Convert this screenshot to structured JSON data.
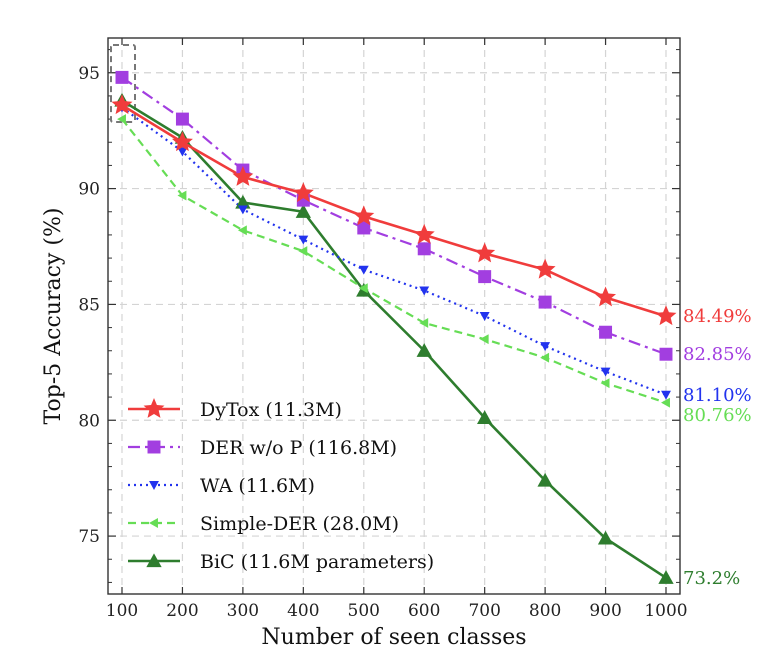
{
  "chart_data": {
    "type": "line",
    "xlabel": "Number of seen classes",
    "ylabel": "Top-5 Accuracy (%)",
    "x": [
      100,
      200,
      300,
      400,
      500,
      600,
      700,
      800,
      900,
      1000
    ],
    "xticks": [
      "100",
      "200",
      "300",
      "400",
      "500",
      "600",
      "700",
      "800",
      "900",
      "1000"
    ],
    "yticks": [
      "75",
      "80",
      "85",
      "90",
      "95"
    ],
    "ylim": [
      72.5,
      96.5
    ],
    "grid": true,
    "legend_position": "bottom-left",
    "series": [
      {
        "name": "DyTox (11.3M)",
        "color": "#f03c3c",
        "marker": "star",
        "dash": "solid",
        "values": [
          93.6,
          92.0,
          90.5,
          89.8,
          88.8,
          88.0,
          87.2,
          86.5,
          85.3,
          84.49
        ],
        "end_label": "84.49%"
      },
      {
        "name": "DER w/o P (116.8M)",
        "color": "#a23ee0",
        "marker": "square",
        "dash": "dashdot",
        "values": [
          94.8,
          93.0,
          90.8,
          89.5,
          88.3,
          87.4,
          86.2,
          85.1,
          83.8,
          82.85
        ],
        "end_label": "82.85%"
      },
      {
        "name": "WA (11.6M)",
        "color": "#2233ee",
        "marker": "triangle-down",
        "dash": "dotted",
        "values": [
          93.5,
          91.6,
          89.1,
          87.8,
          86.5,
          85.6,
          84.5,
          83.2,
          82.1,
          81.1
        ],
        "end_label": "81.10%"
      },
      {
        "name": "Simple-DER (28.0M)",
        "color": "#66dd55",
        "marker": "triangle-left",
        "dash": "dashed",
        "values": [
          93.0,
          89.7,
          88.2,
          87.3,
          85.7,
          84.2,
          83.5,
          82.7,
          81.6,
          80.76
        ],
        "end_label": "80.76%"
      },
      {
        "name": "BiC (11.6M parameters)",
        "color": "#2e7d2e",
        "marker": "triangle-up",
        "dash": "solid",
        "values": [
          93.8,
          92.2,
          89.4,
          89.0,
          85.6,
          83.0,
          80.1,
          77.4,
          74.9,
          73.2
        ],
        "end_label": "73.2%"
      }
    ]
  }
}
